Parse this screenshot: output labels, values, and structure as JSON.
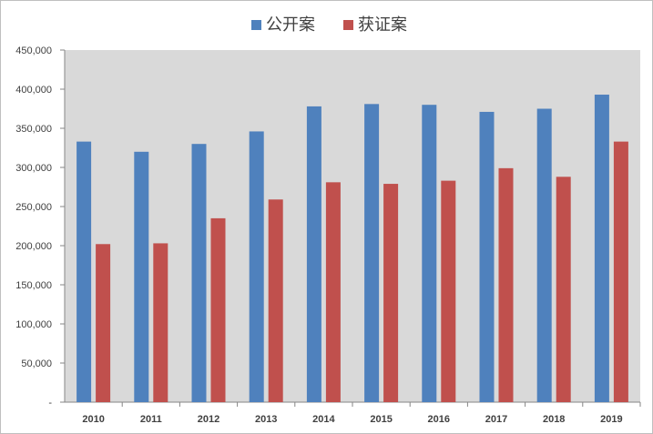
{
  "chart_data": {
    "type": "bar",
    "categories": [
      "2010",
      "2011",
      "2012",
      "2013",
      "2014",
      "2015",
      "2016",
      "2017",
      "2018",
      "2019"
    ],
    "series": [
      {
        "name": "公开案",
        "color": "#4f81bd",
        "values": [
          333000,
          320000,
          330000,
          346000,
          378000,
          381000,
          380000,
          371000,
          375000,
          393000
        ]
      },
      {
        "name": "获证案",
        "color": "#c0504d",
        "values": [
          202000,
          203000,
          235000,
          259000,
          281000,
          279000,
          283000,
          299000,
          288000,
          333000
        ]
      }
    ],
    "ylim": [
      0,
      450000
    ],
    "yticks": [
      0,
      50000,
      100000,
      150000,
      200000,
      250000,
      300000,
      350000,
      400000,
      450000
    ],
    "ytick_labels": [
      "-",
      "50,000",
      "100,000",
      "150,000",
      "200,000",
      "250,000",
      "300,000",
      "350,000",
      "400,000",
      "450,000"
    ],
    "legend_position": "top",
    "plot_background": "#d9d9d9",
    "grid": false
  }
}
